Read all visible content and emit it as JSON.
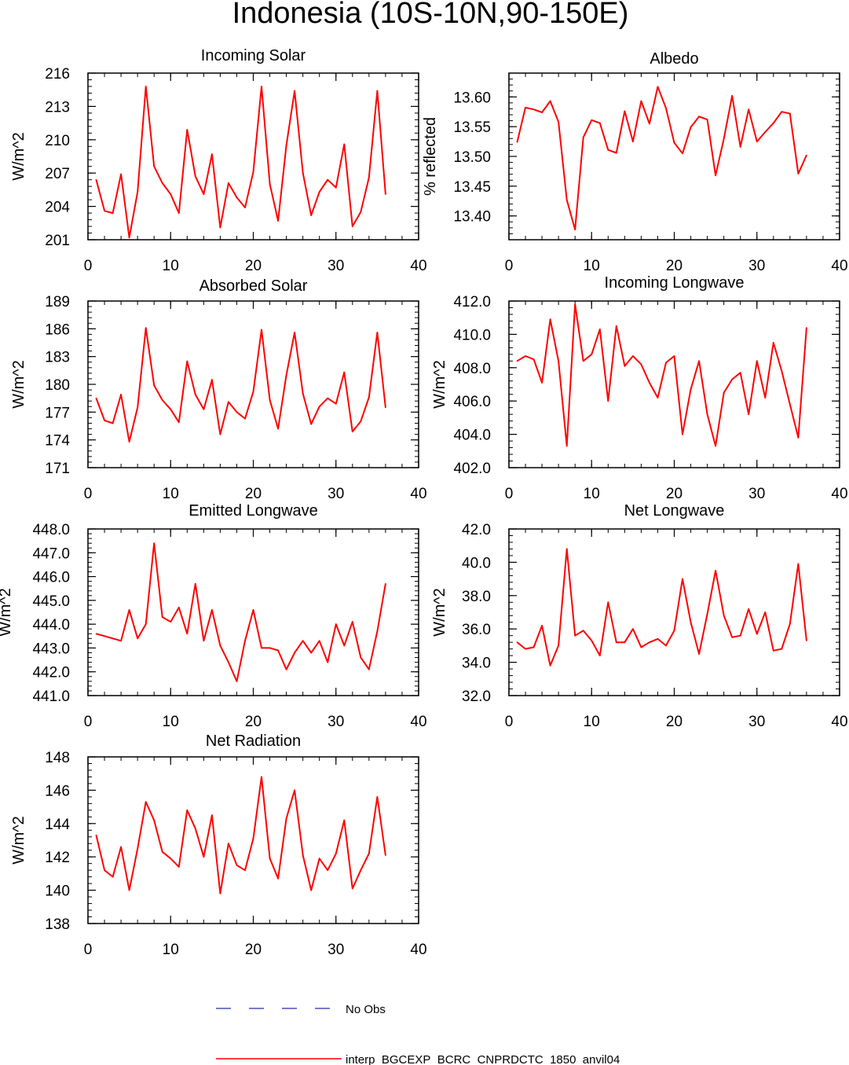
{
  "title": "Indonesia (10S-10N,90-150E)",
  "colors": {
    "series": "#ff0000",
    "no_obs": "#2b2bb0",
    "axis": "#000000"
  },
  "legend": {
    "no_obs_label": "No Obs",
    "series_label": "interp_BGCEXP_BCRC_CNPRDCTC_1850_anvil04"
  },
  "chart_data": [
    {
      "type": "line",
      "id": "incoming-solar",
      "title": "Incoming Solar",
      "xlabel": "",
      "ylabel": "W/m^2",
      "xlim": [
        0,
        40
      ],
      "ylim": [
        201,
        216
      ],
      "xticks": [
        0,
        10,
        20,
        30,
        40
      ],
      "yticks": [
        201,
        204,
        207,
        210,
        213,
        216
      ],
      "ytick_labels": [
        "201",
        "204",
        "207",
        "210",
        "213",
        "216"
      ],
      "x": [
        1,
        2,
        3,
        4,
        5,
        6,
        7,
        8,
        9,
        10,
        11,
        12,
        13,
        14,
        15,
        16,
        17,
        18,
        19,
        20,
        21,
        22,
        23,
        24,
        25,
        26,
        27,
        28,
        29,
        30,
        31,
        32,
        33,
        34,
        35,
        36
      ],
      "values": [
        206.4,
        203.6,
        203.4,
        206.9,
        201.2,
        205.3,
        214.8,
        207.6,
        206.1,
        205.1,
        203.4,
        210.9,
        206.7,
        205.1,
        208.7,
        202.1,
        206.1,
        204.8,
        203.9,
        207.1,
        214.8,
        206.0,
        202.7,
        209.5,
        214.4,
        207.0,
        203.2,
        205.3,
        206.4,
        205.7,
        209.6,
        202.2,
        203.5,
        206.6,
        214.4,
        205.1
      ]
    },
    {
      "type": "line",
      "id": "albedo",
      "title": "Albedo",
      "xlabel": "",
      "ylabel": "% reflected",
      "xlim": [
        0,
        40
      ],
      "ylim": [
        13.36,
        13.64
      ],
      "xticks": [
        0,
        10,
        20,
        30,
        40
      ],
      "yticks": [
        13.4,
        13.45,
        13.5,
        13.55,
        13.6
      ],
      "ytick_labels": [
        "13.40",
        "13.45",
        "13.50",
        "13.55",
        "13.60"
      ],
      "x": [
        1,
        2,
        3,
        4,
        5,
        6,
        7,
        8,
        9,
        10,
        11,
        12,
        13,
        14,
        15,
        16,
        17,
        18,
        19,
        20,
        21,
        22,
        23,
        24,
        25,
        26,
        27,
        28,
        29,
        30,
        31,
        32,
        33,
        34,
        35,
        36
      ],
      "values": [
        13.524,
        13.582,
        13.579,
        13.574,
        13.593,
        13.558,
        13.427,
        13.377,
        13.532,
        13.561,
        13.556,
        13.511,
        13.506,
        13.576,
        13.525,
        13.593,
        13.555,
        13.617,
        13.581,
        13.523,
        13.505,
        13.549,
        13.567,
        13.562,
        13.468,
        13.53,
        13.602,
        13.516,
        13.579,
        13.525,
        13.541,
        13.556,
        13.575,
        13.572,
        13.471,
        13.502
      ]
    },
    {
      "type": "line",
      "id": "absorbed-solar",
      "title": "Absorbed Solar",
      "xlabel": "",
      "ylabel": "W/m^2",
      "xlim": [
        0,
        40
      ],
      "ylim": [
        171,
        189
      ],
      "xticks": [
        0,
        10,
        20,
        30,
        40
      ],
      "yticks": [
        171,
        174,
        177,
        180,
        183,
        186,
        189
      ],
      "ytick_labels": [
        "171",
        "174",
        "177",
        "180",
        "183",
        "186",
        "189"
      ],
      "x": [
        1,
        2,
        3,
        4,
        5,
        6,
        7,
        8,
        9,
        10,
        11,
        12,
        13,
        14,
        15,
        16,
        17,
        18,
        19,
        20,
        21,
        22,
        23,
        24,
        25,
        26,
        27,
        28,
        29,
        30,
        31,
        32,
        33,
        34,
        35,
        36
      ],
      "values": [
        178.5,
        176.1,
        175.8,
        178.9,
        173.8,
        177.5,
        186.1,
        179.9,
        178.3,
        177.3,
        175.9,
        182.5,
        178.9,
        177.3,
        180.5,
        174.6,
        178.1,
        177.0,
        176.3,
        179.2,
        185.9,
        178.3,
        175.2,
        181.0,
        185.6,
        179.0,
        175.7,
        177.6,
        178.5,
        177.9,
        181.3,
        174.9,
        176.0,
        178.6,
        185.6,
        177.5
      ]
    },
    {
      "type": "line",
      "id": "incoming-longwave",
      "title": "Incoming Longwave",
      "xlabel": "",
      "ylabel": "W/m^2",
      "xlim": [
        0,
        40
      ],
      "ylim": [
        402,
        412
      ],
      "xticks": [
        0,
        10,
        20,
        30,
        40
      ],
      "yticks": [
        402,
        404,
        406,
        408,
        410,
        412
      ],
      "ytick_labels": [
        "402.0",
        "404.0",
        "406.0",
        "408.0",
        "410.0",
        "412.0"
      ],
      "x": [
        1,
        2,
        3,
        4,
        5,
        6,
        7,
        8,
        9,
        10,
        11,
        12,
        13,
        14,
        15,
        16,
        17,
        18,
        19,
        20,
        21,
        22,
        23,
        24,
        25,
        26,
        27,
        28,
        29,
        30,
        31,
        32,
        33,
        34,
        35,
        36
      ],
      "values": [
        408.4,
        408.7,
        408.5,
        407.1,
        410.9,
        408.4,
        403.3,
        411.8,
        408.4,
        408.8,
        410.3,
        406.0,
        410.5,
        408.1,
        408.7,
        408.2,
        407.1,
        406.2,
        408.3,
        408.7,
        404.0,
        406.7,
        408.4,
        405.2,
        403.3,
        406.5,
        407.3,
        407.7,
        405.2,
        408.4,
        406.2,
        409.5,
        407.8,
        405.8,
        403.8,
        410.4
      ]
    },
    {
      "type": "line",
      "id": "emitted-longwave",
      "title": "Emitted Longwave",
      "xlabel": "",
      "ylabel": "W/m^2",
      "xlim": [
        0,
        40
      ],
      "ylim": [
        441,
        448
      ],
      "xticks": [
        0,
        10,
        20,
        30,
        40
      ],
      "yticks": [
        441,
        442,
        443,
        444,
        445,
        446,
        447,
        448
      ],
      "ytick_labels": [
        "441.0",
        "442.0",
        "443.0",
        "444.0",
        "445.0",
        "446.0",
        "447.0",
        "448.0"
      ],
      "x": [
        1,
        2,
        3,
        4,
        5,
        6,
        7,
        8,
        9,
        10,
        11,
        12,
        13,
        14,
        15,
        16,
        17,
        18,
        19,
        20,
        21,
        22,
        23,
        24,
        25,
        26,
        27,
        28,
        29,
        30,
        31,
        32,
        33,
        34,
        35,
        36
      ],
      "values": [
        443.6,
        443.5,
        443.4,
        443.3,
        444.6,
        443.4,
        444.0,
        447.4,
        444.3,
        444.1,
        444.7,
        443.6,
        445.7,
        443.3,
        444.6,
        443.1,
        442.4,
        441.6,
        443.3,
        444.6,
        443.0,
        443.0,
        442.9,
        442.1,
        442.8,
        443.3,
        442.8,
        443.3,
        442.4,
        444.0,
        443.1,
        444.1,
        442.6,
        442.1,
        443.7,
        445.7
      ]
    },
    {
      "type": "line",
      "id": "net-longwave",
      "title": "Net Longwave",
      "xlabel": "",
      "ylabel": "W/m^2",
      "xlim": [
        0,
        40
      ],
      "ylim": [
        32,
        42
      ],
      "xticks": [
        0,
        10,
        20,
        30,
        40
      ],
      "yticks": [
        32,
        34,
        36,
        38,
        40,
        42
      ],
      "ytick_labels": [
        "32.0",
        "34.0",
        "36.0",
        "38.0",
        "40.0",
        "42.0"
      ],
      "x": [
        1,
        2,
        3,
        4,
        5,
        6,
        7,
        8,
        9,
        10,
        11,
        12,
        13,
        14,
        15,
        16,
        17,
        18,
        19,
        20,
        21,
        22,
        23,
        24,
        25,
        26,
        27,
        28,
        29,
        30,
        31,
        32,
        33,
        34,
        35,
        36
      ],
      "values": [
        35.2,
        34.8,
        34.9,
        36.2,
        33.8,
        35.0,
        40.8,
        35.6,
        35.9,
        35.3,
        34.4,
        37.6,
        35.2,
        35.2,
        36.0,
        34.9,
        35.2,
        35.4,
        35.0,
        35.9,
        39.0,
        36.4,
        34.5,
        36.9,
        39.5,
        36.8,
        35.5,
        35.6,
        37.2,
        35.7,
        37.0,
        34.7,
        34.8,
        36.3,
        39.9,
        35.3
      ]
    },
    {
      "type": "line",
      "id": "net-radiation",
      "title": "Net Radiation",
      "xlabel": "",
      "ylabel": "W/m^2",
      "xlim": [
        0,
        40
      ],
      "ylim": [
        138,
        148
      ],
      "xticks": [
        0,
        10,
        20,
        30,
        40
      ],
      "yticks": [
        138,
        140,
        142,
        144,
        146,
        148
      ],
      "ytick_labels": [
        "138",
        "140",
        "142",
        "144",
        "146",
        "148"
      ],
      "x": [
        1,
        2,
        3,
        4,
        5,
        6,
        7,
        8,
        9,
        10,
        11,
        12,
        13,
        14,
        15,
        16,
        17,
        18,
        19,
        20,
        21,
        22,
        23,
        24,
        25,
        26,
        27,
        28,
        29,
        30,
        31,
        32,
        33,
        34,
        35,
        36
      ],
      "values": [
        143.3,
        141.2,
        140.8,
        142.6,
        140.0,
        142.5,
        145.3,
        144.2,
        142.3,
        141.9,
        141.4,
        144.8,
        143.7,
        142.0,
        144.5,
        139.8,
        142.8,
        141.5,
        141.2,
        143.1,
        146.8,
        141.9,
        140.7,
        144.3,
        146.0,
        142.1,
        140.0,
        141.9,
        141.2,
        142.2,
        144.2,
        140.1,
        141.2,
        142.2,
        145.6,
        142.1
      ]
    }
  ]
}
